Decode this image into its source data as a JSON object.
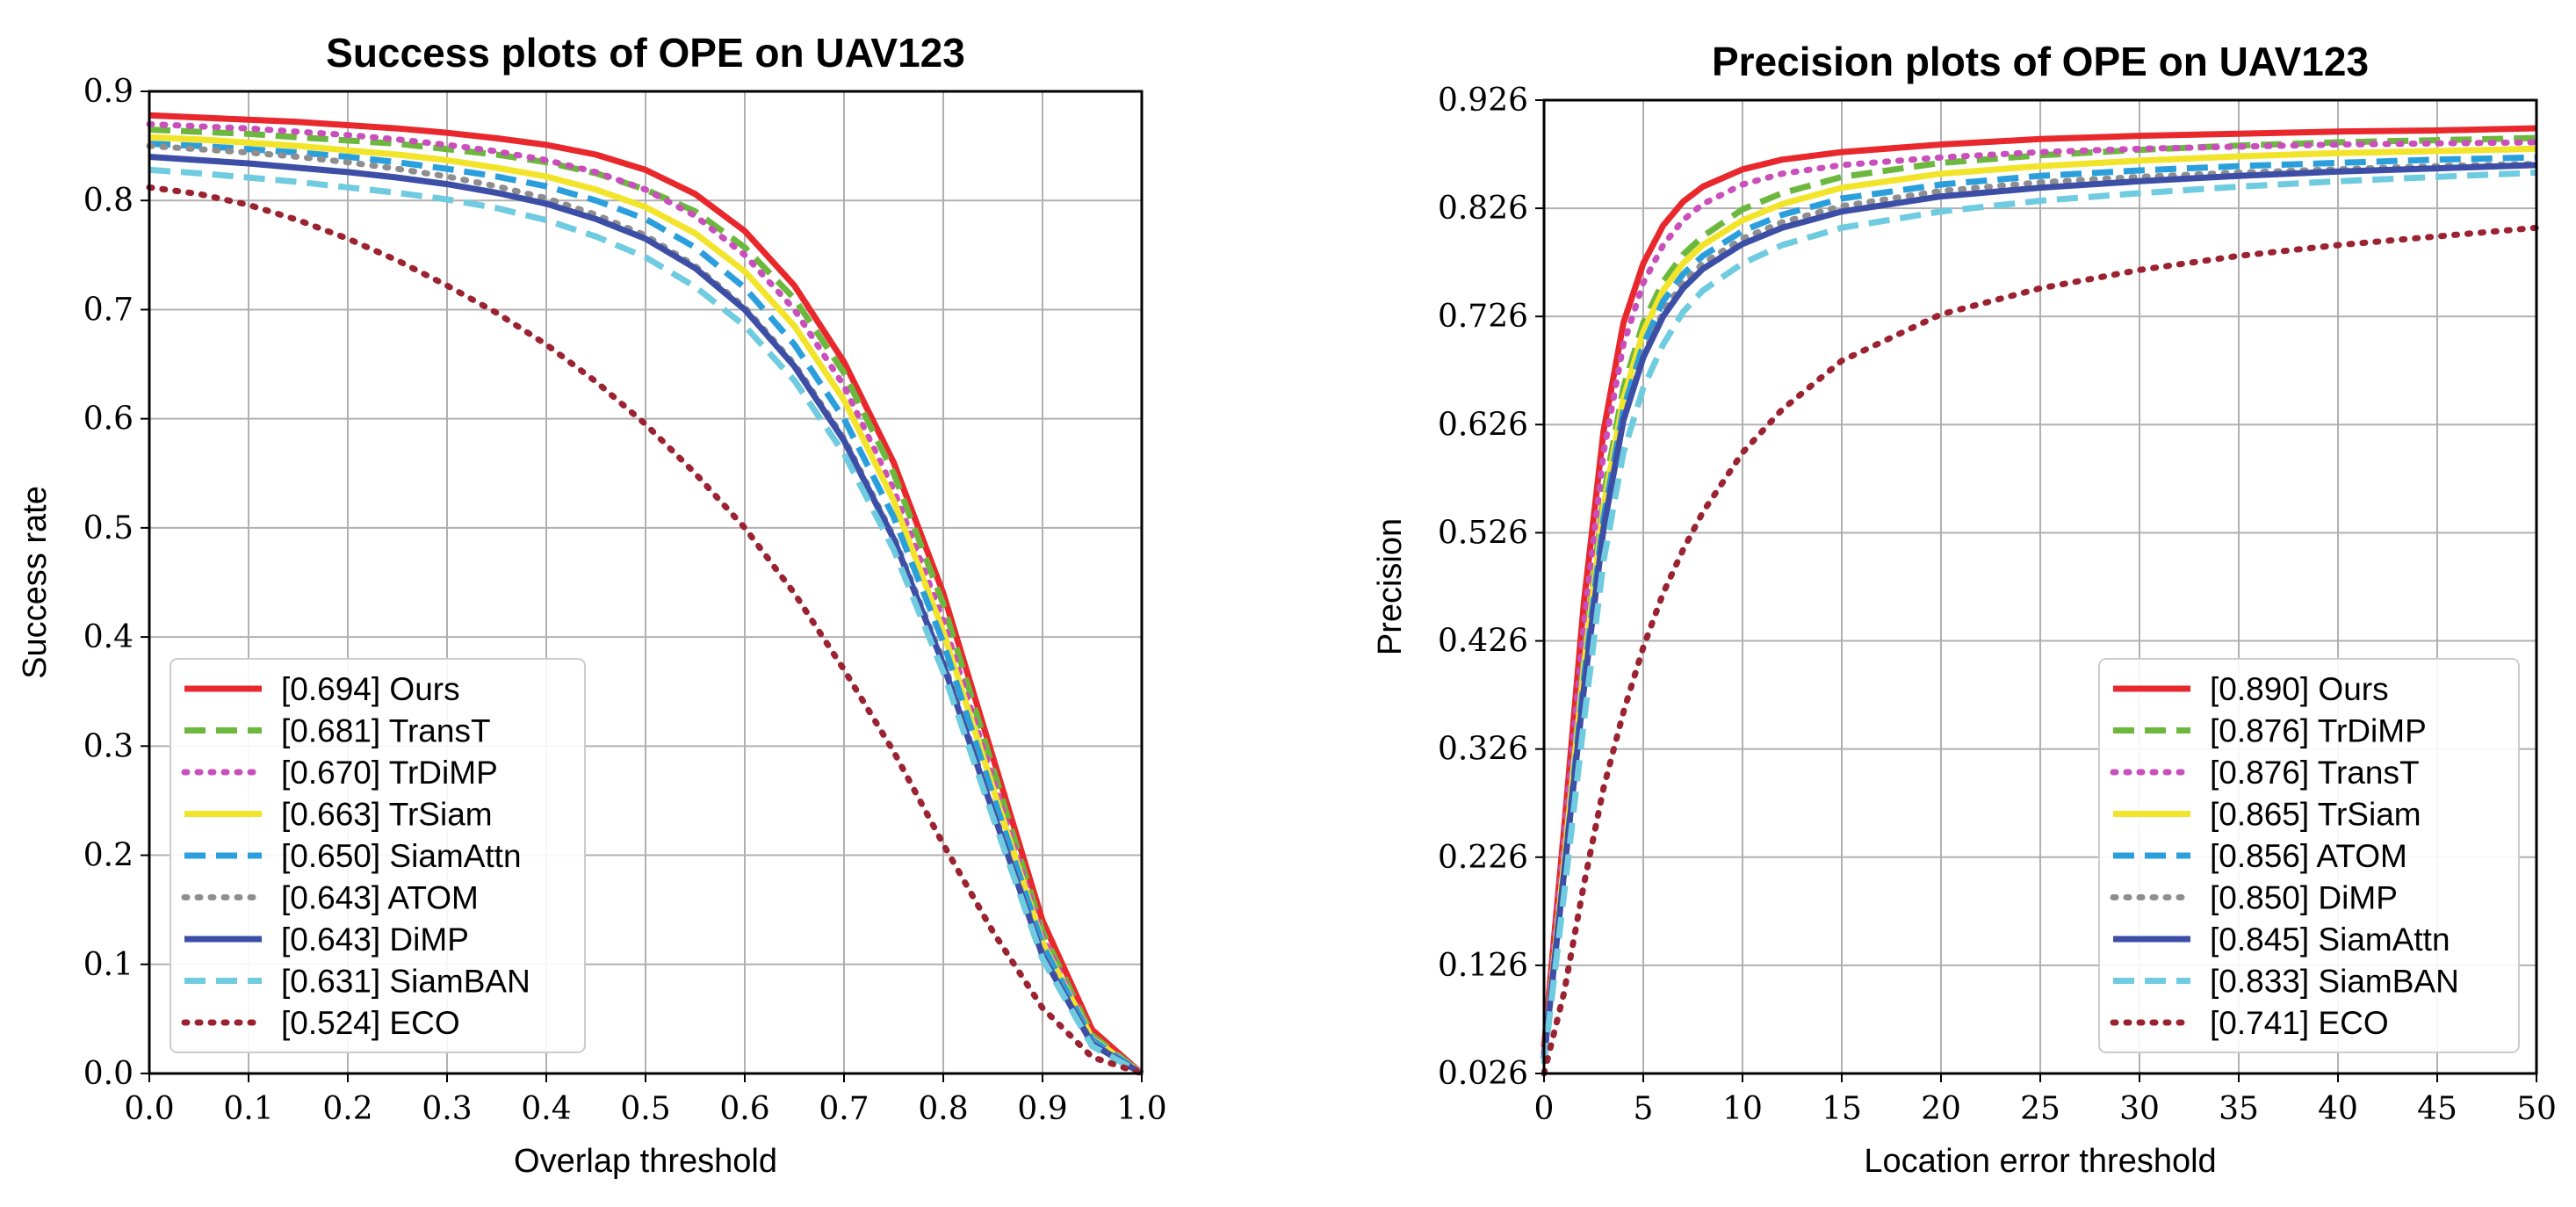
{
  "chart_data": [
    {
      "type": "line",
      "title": "Success plots of OPE on UAV123",
      "xlabel": "Overlap threshold",
      "ylabel": "Success rate",
      "xlim": [
        0,
        1
      ],
      "ylim": [
        0,
        0.9
      ],
      "xticks": [
        0.0,
        0.1,
        0.2,
        0.3,
        0.4,
        0.5,
        0.6,
        0.7,
        0.8,
        0.9,
        1.0
      ],
      "xtick_labels": [
        "0.0",
        "0.1",
        "0.2",
        "0.3",
        "0.4",
        "0.5",
        "0.6",
        "0.7",
        "0.8",
        "0.9",
        "1.0"
      ],
      "yticks": [
        0.0,
        0.1,
        0.2,
        0.3,
        0.4,
        0.5,
        0.6,
        0.7,
        0.8,
        0.9
      ],
      "ytick_labels": [
        "0.0",
        "0.1",
        "0.2",
        "0.3",
        "0.4",
        "0.5",
        "0.6",
        "0.7",
        "0.8",
        "0.9"
      ],
      "grid": true,
      "legend_position": "lower-left",
      "x": [
        0.0,
        0.05,
        0.1,
        0.15,
        0.2,
        0.25,
        0.3,
        0.35,
        0.4,
        0.45,
        0.5,
        0.55,
        0.6,
        0.65,
        0.7,
        0.75,
        0.8,
        0.85,
        0.9,
        0.95,
        1.0
      ],
      "series": [
        {
          "name": "Ours",
          "label": "[0.694] Ours",
          "color": "#e8282c",
          "dash": "solid",
          "values": [
            0.878,
            0.876,
            0.874,
            0.872,
            0.869,
            0.866,
            0.862,
            0.857,
            0.851,
            0.842,
            0.828,
            0.806,
            0.772,
            0.722,
            0.652,
            0.56,
            0.44,
            0.29,
            0.14,
            0.04,
            0.0
          ]
        },
        {
          "name": "TransT",
          "label": "[0.681] TransT",
          "color": "#6cb83e",
          "dash": "dashed",
          "values": [
            0.865,
            0.863,
            0.861,
            0.858,
            0.855,
            0.852,
            0.847,
            0.842,
            0.835,
            0.825,
            0.81,
            0.79,
            0.757,
            0.71,
            0.642,
            0.55,
            0.43,
            0.28,
            0.13,
            0.035,
            0.0
          ]
        },
        {
          "name": "TrDiMP",
          "label": "[0.670] TrDiMP",
          "color": "#c94fbb",
          "dash": "dotted",
          "values": [
            0.87,
            0.868,
            0.866,
            0.863,
            0.86,
            0.856,
            0.851,
            0.845,
            0.837,
            0.826,
            0.81,
            0.786,
            0.75,
            0.7,
            0.63,
            0.535,
            0.415,
            0.27,
            0.125,
            0.033,
            0.0
          ]
        },
        {
          "name": "TrSiam",
          "label": "[0.663] TrSiam",
          "color": "#f2e42a",
          "dash": "solid",
          "values": [
            0.858,
            0.856,
            0.853,
            0.85,
            0.846,
            0.842,
            0.837,
            0.83,
            0.822,
            0.81,
            0.794,
            0.77,
            0.735,
            0.685,
            0.617,
            0.525,
            0.405,
            0.262,
            0.12,
            0.032,
            0.0
          ]
        },
        {
          "name": "SiamAttn",
          "label": "[0.650] SiamAttn",
          "color": "#2a9fdc",
          "dash": "dashed",
          "values": [
            0.852,
            0.85,
            0.847,
            0.844,
            0.84,
            0.835,
            0.829,
            0.822,
            0.813,
            0.8,
            0.783,
            0.757,
            0.72,
            0.668,
            0.6,
            0.51,
            0.395,
            0.255,
            0.118,
            0.031,
            0.0
          ]
        },
        {
          "name": "ATOM",
          "label": "[0.643] ATOM",
          "color": "#8e8e8e",
          "dash": "dotted",
          "values": [
            0.85,
            0.847,
            0.844,
            0.84,
            0.835,
            0.829,
            0.822,
            0.813,
            0.802,
            0.787,
            0.768,
            0.74,
            0.702,
            0.65,
            0.582,
            0.492,
            0.378,
            0.242,
            0.11,
            0.028,
            0.0
          ]
        },
        {
          "name": "DiMP",
          "label": "[0.643] DiMP",
          "color": "#3d4ea6",
          "dash": "solid",
          "values": [
            0.84,
            0.837,
            0.834,
            0.83,
            0.826,
            0.821,
            0.815,
            0.807,
            0.797,
            0.783,
            0.765,
            0.738,
            0.7,
            0.648,
            0.58,
            0.49,
            0.375,
            0.24,
            0.108,
            0.027,
            0.0
          ]
        },
        {
          "name": "SiamBAN",
          "label": "[0.631] SiamBAN",
          "color": "#6fcbdf",
          "dash": "dashed",
          "values": [
            0.828,
            0.825,
            0.821,
            0.817,
            0.812,
            0.807,
            0.801,
            0.793,
            0.782,
            0.767,
            0.748,
            0.721,
            0.685,
            0.635,
            0.568,
            0.48,
            0.368,
            0.235,
            0.105,
            0.025,
            0.0
          ]
        },
        {
          "name": "ECO",
          "label": "[0.524] ECO",
          "color": "#9b2230",
          "dash": "dotted",
          "values": [
            0.812,
            0.806,
            0.796,
            0.782,
            0.765,
            0.745,
            0.722,
            0.697,
            0.668,
            0.634,
            0.595,
            0.55,
            0.5,
            0.44,
            0.37,
            0.295,
            0.21,
            0.13,
            0.06,
            0.015,
            0.0
          ]
        }
      ]
    },
    {
      "type": "line",
      "title": "Precision plots of OPE on UAV123",
      "xlabel": "Location error threshold",
      "ylabel": "Precision",
      "xlim": [
        0,
        50
      ],
      "ylim": [
        0.026,
        0.926
      ],
      "xticks": [
        0,
        5,
        10,
        15,
        20,
        25,
        30,
        35,
        40,
        45,
        50
      ],
      "xtick_labels": [
        "0",
        "5",
        "10",
        "15",
        "20",
        "25",
        "30",
        "35",
        "40",
        "45",
        "50"
      ],
      "yticks": [
        0.026,
        0.126,
        0.226,
        0.326,
        0.426,
        0.526,
        0.626,
        0.726,
        0.826,
        0.926
      ],
      "ytick_labels": [
        "0.026",
        "0.126",
        "0.226",
        "0.326",
        "0.426",
        "0.526",
        "0.626",
        "0.726",
        "0.826",
        "0.926"
      ],
      "grid": true,
      "legend_position": "lower-right",
      "x": [
        0,
        1,
        2,
        3,
        4,
        5,
        6,
        7,
        8,
        10,
        12,
        15,
        20,
        25,
        30,
        35,
        40,
        45,
        50
      ],
      "series": [
        {
          "name": "Ours",
          "label": "[0.890] Ours",
          "color": "#e8282c",
          "dash": "solid",
          "values": [
            0.05,
            0.25,
            0.46,
            0.62,
            0.72,
            0.775,
            0.81,
            0.832,
            0.846,
            0.862,
            0.871,
            0.878,
            0.885,
            0.89,
            0.893,
            0.895,
            0.897,
            0.898,
            0.9
          ]
        },
        {
          "name": "TrDiMP",
          "label": "[0.876] TrDiMP",
          "color": "#6cb83e",
          "dash": "dashed",
          "values": [
            0.04,
            0.22,
            0.41,
            0.56,
            0.66,
            0.72,
            0.758,
            0.783,
            0.8,
            0.825,
            0.84,
            0.855,
            0.868,
            0.875,
            0.88,
            0.884,
            0.887,
            0.889,
            0.891
          ]
        },
        {
          "name": "TransT",
          "label": "[0.876] TransT",
          "color": "#c94fbb",
          "dash": "dotted",
          "values": [
            0.045,
            0.24,
            0.44,
            0.6,
            0.7,
            0.757,
            0.792,
            0.815,
            0.83,
            0.848,
            0.858,
            0.866,
            0.873,
            0.878,
            0.881,
            0.883,
            0.885,
            0.886,
            0.887
          ]
        },
        {
          "name": "TrSiam",
          "label": "[0.865] TrSiam",
          "color": "#f2e42a",
          "dash": "solid",
          "values": [
            0.04,
            0.22,
            0.4,
            0.55,
            0.65,
            0.712,
            0.75,
            0.775,
            0.792,
            0.815,
            0.83,
            0.845,
            0.858,
            0.865,
            0.87,
            0.874,
            0.877,
            0.879,
            0.881
          ]
        },
        {
          "name": "ATOM",
          "label": "[0.856] ATOM",
          "color": "#2a9fdc",
          "dash": "dashed",
          "values": [
            0.04,
            0.21,
            0.39,
            0.54,
            0.64,
            0.7,
            0.74,
            0.765,
            0.782,
            0.805,
            0.82,
            0.835,
            0.848,
            0.856,
            0.861,
            0.865,
            0.868,
            0.871,
            0.873
          ]
        },
        {
          "name": "DiMP",
          "label": "[0.850] DiMP",
          "color": "#8e8e8e",
          "dash": "dotted",
          "values": [
            0.04,
            0.21,
            0.38,
            0.53,
            0.63,
            0.69,
            0.73,
            0.757,
            0.775,
            0.798,
            0.813,
            0.828,
            0.842,
            0.85,
            0.855,
            0.859,
            0.862,
            0.865,
            0.867
          ]
        },
        {
          "name": "SiamAttn",
          "label": "[0.845] SiamAttn",
          "color": "#3d4ea6",
          "dash": "solid",
          "values": [
            0.04,
            0.21,
            0.38,
            0.53,
            0.63,
            0.688,
            0.726,
            0.752,
            0.77,
            0.793,
            0.808,
            0.823,
            0.837,
            0.845,
            0.851,
            0.856,
            0.86,
            0.863,
            0.866
          ]
        },
        {
          "name": "SiamBAN",
          "label": "[0.833] SiamBAN",
          "color": "#6fcbdf",
          "dash": "dashed",
          "values": [
            0.035,
            0.19,
            0.35,
            0.5,
            0.6,
            0.66,
            0.7,
            0.73,
            0.75,
            0.775,
            0.792,
            0.808,
            0.823,
            0.833,
            0.84,
            0.846,
            0.851,
            0.855,
            0.859
          ]
        },
        {
          "name": "ECO",
          "label": "[0.741] ECO",
          "color": "#9b2230",
          "dash": "dotted",
          "values": [
            0.026,
            0.1,
            0.2,
            0.29,
            0.36,
            0.42,
            0.47,
            0.51,
            0.545,
            0.6,
            0.64,
            0.685,
            0.728,
            0.752,
            0.769,
            0.782,
            0.792,
            0.8,
            0.808
          ]
        }
      ]
    }
  ]
}
